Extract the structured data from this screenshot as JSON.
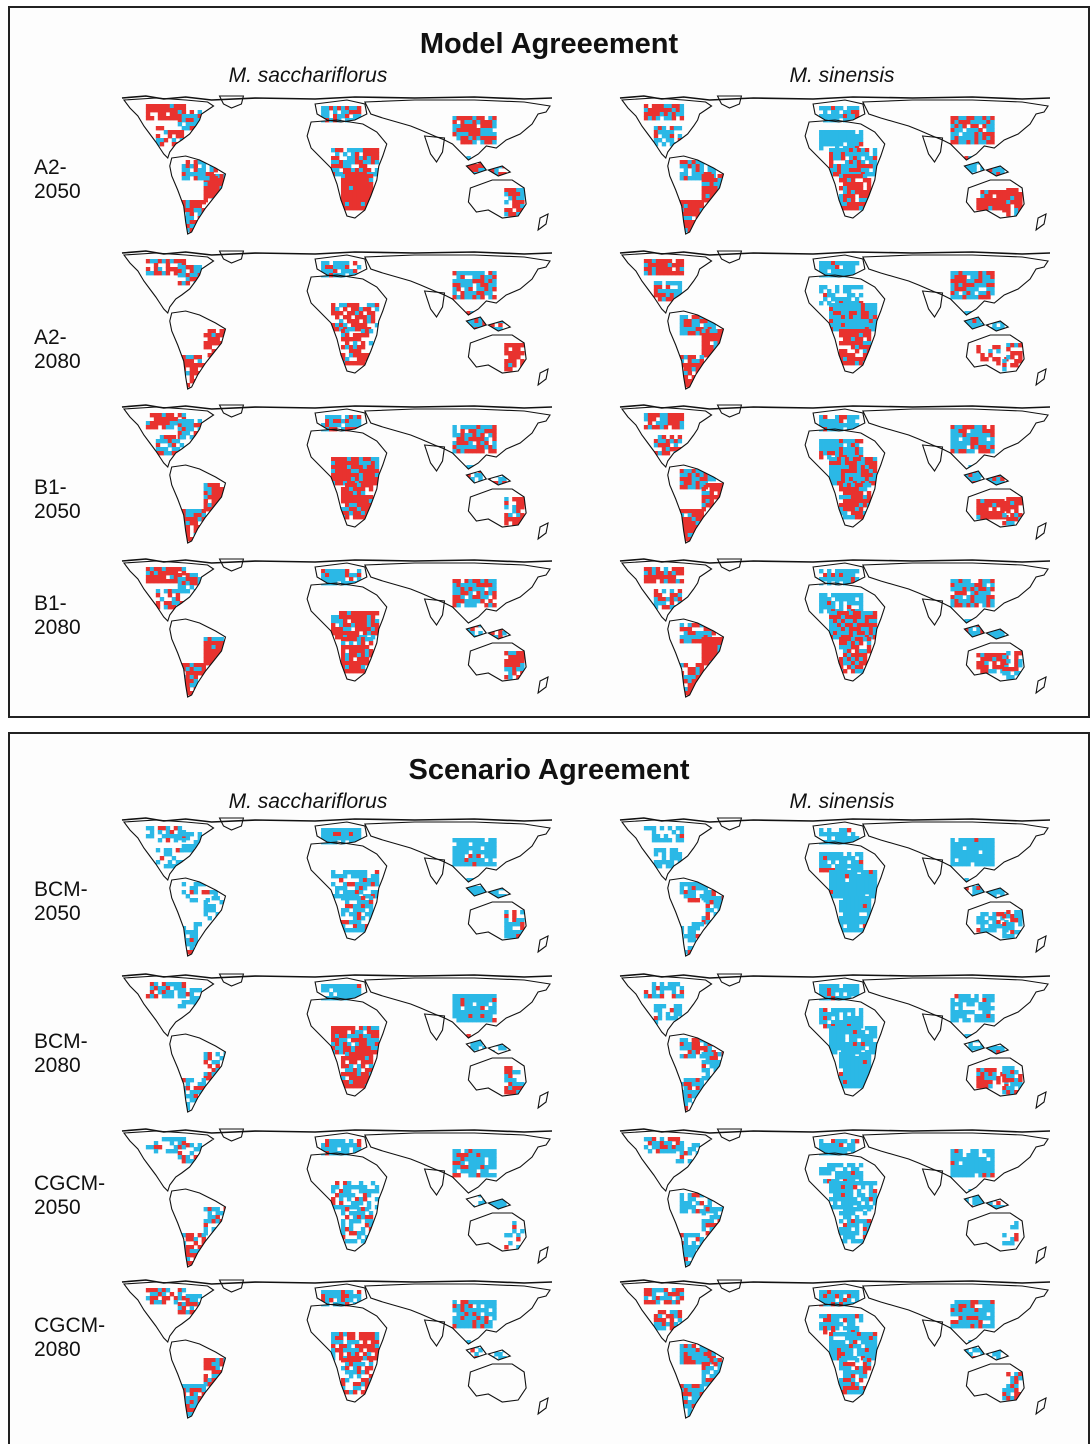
{
  "colors": {
    "red": "#e8322f",
    "blue": "#2bb8e6",
    "outline": "#111111",
    "panel_border": "#222222"
  },
  "panels": [
    {
      "title": "Model Agreeement",
      "columns": [
        "M. sacchariflorus",
        "M. sinensis"
      ],
      "rows": [
        {
          "label_line1": "A2-",
          "label_line2": "2050"
        },
        {
          "label_line1": "A2-",
          "label_line2": "2080"
        },
        {
          "label_line1": "B1-",
          "label_line2": "2050"
        },
        {
          "label_line1": "B1-",
          "label_line2": "2080"
        }
      ]
    },
    {
      "title": "Scenario Agreement",
      "columns": [
        "M. sacchariflorus",
        "M. sinensis"
      ],
      "rows": [
        {
          "label_line1": "BCM-",
          "label_line2": "2050"
        },
        {
          "label_line1": "BCM-",
          "label_line2": "2080"
        },
        {
          "label_line1": "CGCM-",
          "label_line2": "2050"
        },
        {
          "label_line1": "CGCM-",
          "label_line2": "2080"
        }
      ]
    }
  ]
}
